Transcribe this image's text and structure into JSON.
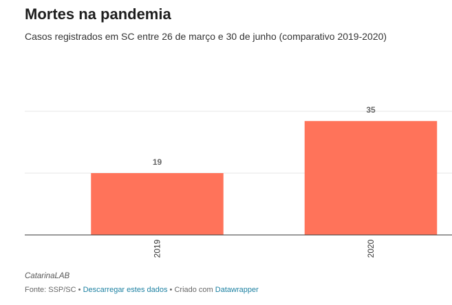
{
  "title": "Mortes na pandemia",
  "subtitle": "Casos registrados em SC entre 26 de março e 30 de junho (comparativo 2019-2020)",
  "byline": "CatarinaLAB",
  "footer": {
    "source_label": "Fonte: SSP/SC",
    "separator": "•",
    "download_link": "Descarregar estes dados",
    "created_with": "Criado com",
    "tool_link": "Datawrapper"
  },
  "colors": {
    "bar": "#ff735a",
    "label": "#666666",
    "grid": "#e6e6e6",
    "axis": "#333333"
  },
  "chart_data": {
    "type": "bar",
    "categories": [
      "2019",
      "2020"
    ],
    "values": [
      19,
      35
    ],
    "ylim": [
      0,
      38
    ],
    "grid": true,
    "data_labels": [
      "19",
      "35"
    ]
  }
}
